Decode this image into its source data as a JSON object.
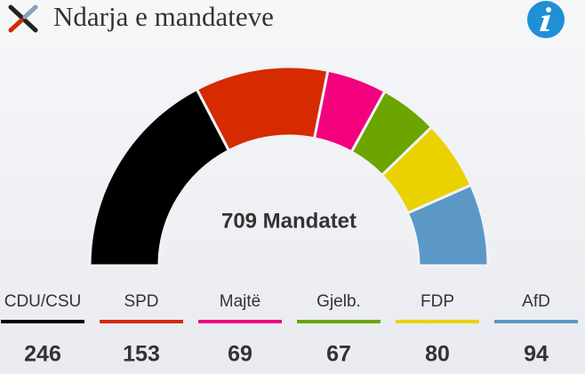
{
  "chart_data": {
    "type": "half-donut",
    "title": "Ndarja e mandateve",
    "center_label": "709 Mandatet",
    "categories": [
      "CDU/CSU",
      "SPD",
      "Majtë",
      "Gjelb.",
      "FDP",
      "AfD"
    ],
    "values": [
      246,
      153,
      69,
      67,
      80,
      94
    ],
    "colors": [
      "#000000",
      "#d62a00",
      "#f3007f",
      "#6ca400",
      "#e9d200",
      "#5b98c6"
    ]
  }
}
